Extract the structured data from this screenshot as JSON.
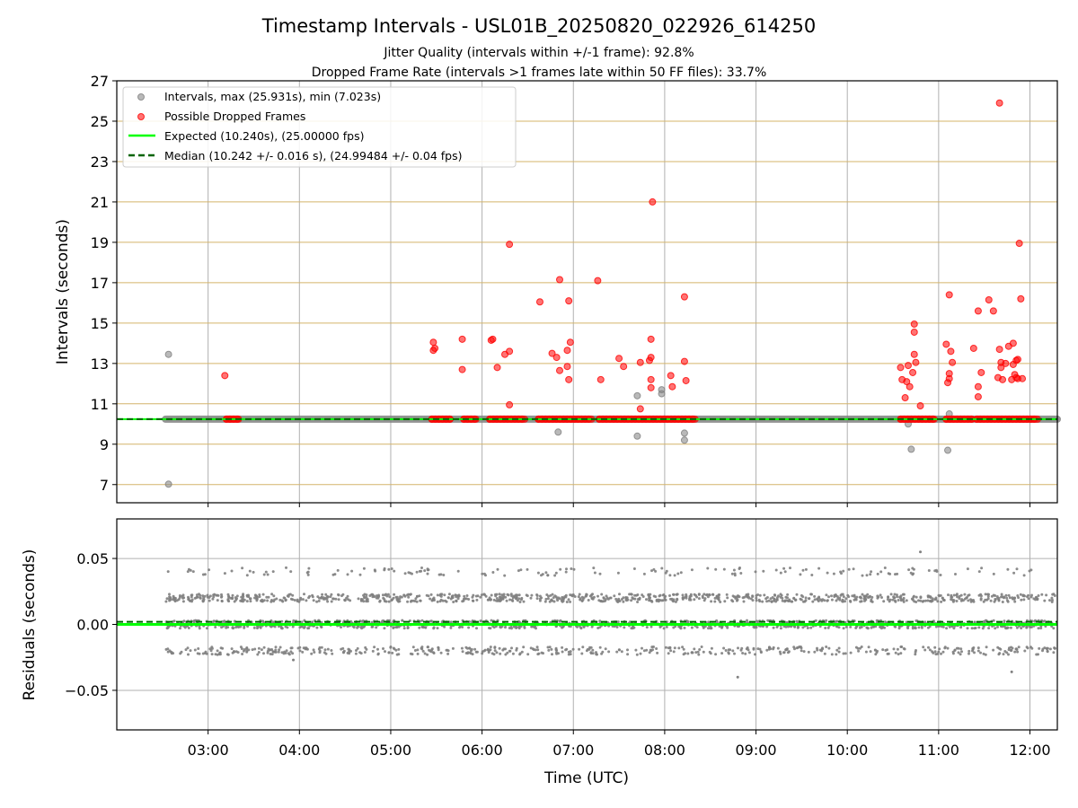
{
  "title": "Timestamp Intervals - USL01B_20250820_022926_614250",
  "subtitle_1": "Jitter Quality (intervals within +/-1 frame): 92.8%",
  "subtitle_2": "Dropped Frame Rate (intervals >1 frames late within 50 FF files): 33.7%",
  "colors": {
    "intervals": "#808080",
    "dropped": "#ff0000",
    "expected": "#00ff00",
    "median": "#006400",
    "hgrid_top": "#d4b46a",
    "grid": "#b0b0b0"
  },
  "chart_data": [
    {
      "type": "scatter",
      "ylabel": "Intervals (seconds)",
      "xlim": [
        "02:00",
        "12:18"
      ],
      "ylim": [
        6.1,
        27.0
      ],
      "yticks": [
        "7",
        "9",
        "11",
        "13",
        "15",
        "17",
        "19",
        "21",
        "23",
        "25",
        "27"
      ],
      "grid": true,
      "legend_placement": "top-left",
      "legend": [
        "Intervals, max (25.931s), min (7.023s)",
        "Possible Dropped Frames",
        "Expected (10.240s), (25.00000 fps)",
        "Median (10.242 +/- 0.016 s), (24.99484 +/- 0.04 fps)"
      ],
      "baseline_band": {
        "from": "02:32",
        "to": "12:18",
        "value": 10.24
      },
      "expected": 10.24,
      "median": 10.242,
      "series": [
        {
          "name": "Intervals, max (25.931s), min (7.023s)",
          "points": [
            [
              "02:34",
              13.45
            ],
            [
              "02:34",
              7.02
            ],
            [
              "06:50",
              9.6
            ],
            [
              "07:42",
              11.4
            ],
            [
              "07:42",
              9.4
            ],
            [
              "07:58",
              11.7
            ],
            [
              "07:58",
              11.5
            ],
            [
              "08:13",
              9.55
            ],
            [
              "08:13",
              9.2
            ],
            [
              "10:40",
              10.0
            ],
            [
              "10:42",
              8.75
            ],
            [
              "11:06",
              8.7
            ],
            [
              "11:07",
              10.5
            ]
          ]
        },
        {
          "name": "Possible Dropped Frames",
          "clusters": [
            {
              "from": "03:12",
              "to": "03:20",
              "value": 10.24
            },
            {
              "from": "05:27",
              "to": "05:39",
              "value": 10.24
            },
            {
              "from": "05:48",
              "to": "05:56",
              "value": 10.24
            },
            {
              "from": "06:05",
              "to": "06:28",
              "value": 10.24
            },
            {
              "from": "06:37",
              "to": "07:12",
              "value": 10.24
            },
            {
              "from": "07:17",
              "to": "08:20",
              "value": 10.24
            },
            {
              "from": "10:35",
              "to": "10:57",
              "value": 10.24
            },
            {
              "from": "11:05",
              "to": "11:22",
              "value": 10.24
            },
            {
              "from": "11:25",
              "to": "12:05",
              "value": 10.24
            }
          ],
          "points": [
            [
              "03:11",
              12.4
            ],
            [
              "05:28",
              14.05
            ],
            [
              "05:28",
              13.65
            ],
            [
              "05:29",
              13.75
            ],
            [
              "05:47",
              14.2
            ],
            [
              "05:47",
              12.7
            ],
            [
              "06:06",
              14.15
            ],
            [
              "06:07",
              14.2
            ],
            [
              "06:10",
              12.8
            ],
            [
              "06:15",
              13.45
            ],
            [
              "06:18",
              13.6
            ],
            [
              "06:18",
              10.95
            ],
            [
              "06:18",
              18.9
            ],
            [
              "06:38",
              16.05
            ],
            [
              "06:46",
              13.5
            ],
            [
              "06:49",
              13.3
            ],
            [
              "06:51",
              17.15
            ],
            [
              "06:51",
              12.65
            ],
            [
              "06:56",
              12.85
            ],
            [
              "06:56",
              13.65
            ],
            [
              "06:57",
              16.1
            ],
            [
              "06:57",
              12.2
            ],
            [
              "06:58",
              14.05
            ],
            [
              "07:16",
              17.1
            ],
            [
              "07:18",
              12.2
            ],
            [
              "07:30",
              13.25
            ],
            [
              "07:33",
              12.85
            ],
            [
              "07:44",
              13.05
            ],
            [
              "07:44",
              10.75
            ],
            [
              "07:50",
              13.15
            ],
            [
              "07:51",
              13.3
            ],
            [
              "07:51",
              12.2
            ],
            [
              "07:51",
              14.2
            ],
            [
              "07:51",
              11.8
            ],
            [
              "07:52",
              21.0
            ],
            [
              "08:04",
              12.4
            ],
            [
              "08:05",
              11.85
            ],
            [
              "08:13",
              16.3
            ],
            [
              "08:13",
              13.1
            ],
            [
              "08:14",
              12.15
            ],
            [
              "10:35",
              12.8
            ],
            [
              "10:36",
              12.2
            ],
            [
              "10:38",
              11.3
            ],
            [
              "10:39",
              12.1
            ],
            [
              "10:40",
              12.9
            ],
            [
              "10:41",
              11.85
            ],
            [
              "10:43",
              12.55
            ],
            [
              "10:44",
              14.95
            ],
            [
              "10:44",
              14.55
            ],
            [
              "10:44",
              13.45
            ],
            [
              "10:45",
              13.05
            ],
            [
              "10:48",
              10.9
            ],
            [
              "11:05",
              13.95
            ],
            [
              "11:06",
              12.05
            ],
            [
              "11:07",
              12.5
            ],
            [
              "11:07",
              12.25
            ],
            [
              "11:07",
              16.4
            ],
            [
              "11:08",
              13.6
            ],
            [
              "11:09",
              13.05
            ],
            [
              "11:23",
              13.75
            ],
            [
              "11:26",
              15.6
            ],
            [
              "11:26",
              11.35
            ],
            [
              "11:26",
              11.85
            ],
            [
              "11:28",
              12.55
            ],
            [
              "11:33",
              16.15
            ],
            [
              "11:36",
              15.6
            ],
            [
              "11:39",
              12.3
            ],
            [
              "11:40",
              25.9
            ],
            [
              "11:40",
              13.7
            ],
            [
              "11:41",
              13.05
            ],
            [
              "11:41",
              12.8
            ],
            [
              "11:42",
              12.2
            ],
            [
              "11:44",
              13.0
            ],
            [
              "11:46",
              13.85
            ],
            [
              "11:48",
              12.2
            ],
            [
              "11:49",
              12.95
            ],
            [
              "11:49",
              14.0
            ],
            [
              "11:50",
              12.45
            ],
            [
              "11:51",
              12.3
            ],
            [
              "11:51",
              13.15
            ],
            [
              "11:52",
              13.2
            ],
            [
              "11:52",
              12.25
            ],
            [
              "11:53",
              18.95
            ],
            [
              "11:54",
              16.2
            ],
            [
              "11:55",
              12.25
            ]
          ]
        }
      ]
    },
    {
      "type": "scatter",
      "xlabel": "Time (UTC)",
      "ylabel": "Residuals (seconds)",
      "xlim": [
        "02:00",
        "12:18"
      ],
      "ylim": [
        -0.08,
        0.08
      ],
      "yticks": [
        "−0.05",
        "0.00",
        "0.05"
      ],
      "xticks": [
        "03:00",
        "04:00",
        "05:00",
        "06:00",
        "07:00",
        "08:00",
        "09:00",
        "10:00",
        "11:00",
        "12:00"
      ],
      "grid": true,
      "expected": 0.0,
      "median": 0.002,
      "residual_levels": [
        0.02,
        0.0,
        -0.02,
        0.04
      ],
      "residual_extremes": [
        [
          "10:48",
          0.055
        ],
        [
          "08:48",
          -0.04
        ],
        [
          "11:48",
          -0.036
        ],
        [
          "03:56",
          -0.027
        ]
      ]
    }
  ]
}
